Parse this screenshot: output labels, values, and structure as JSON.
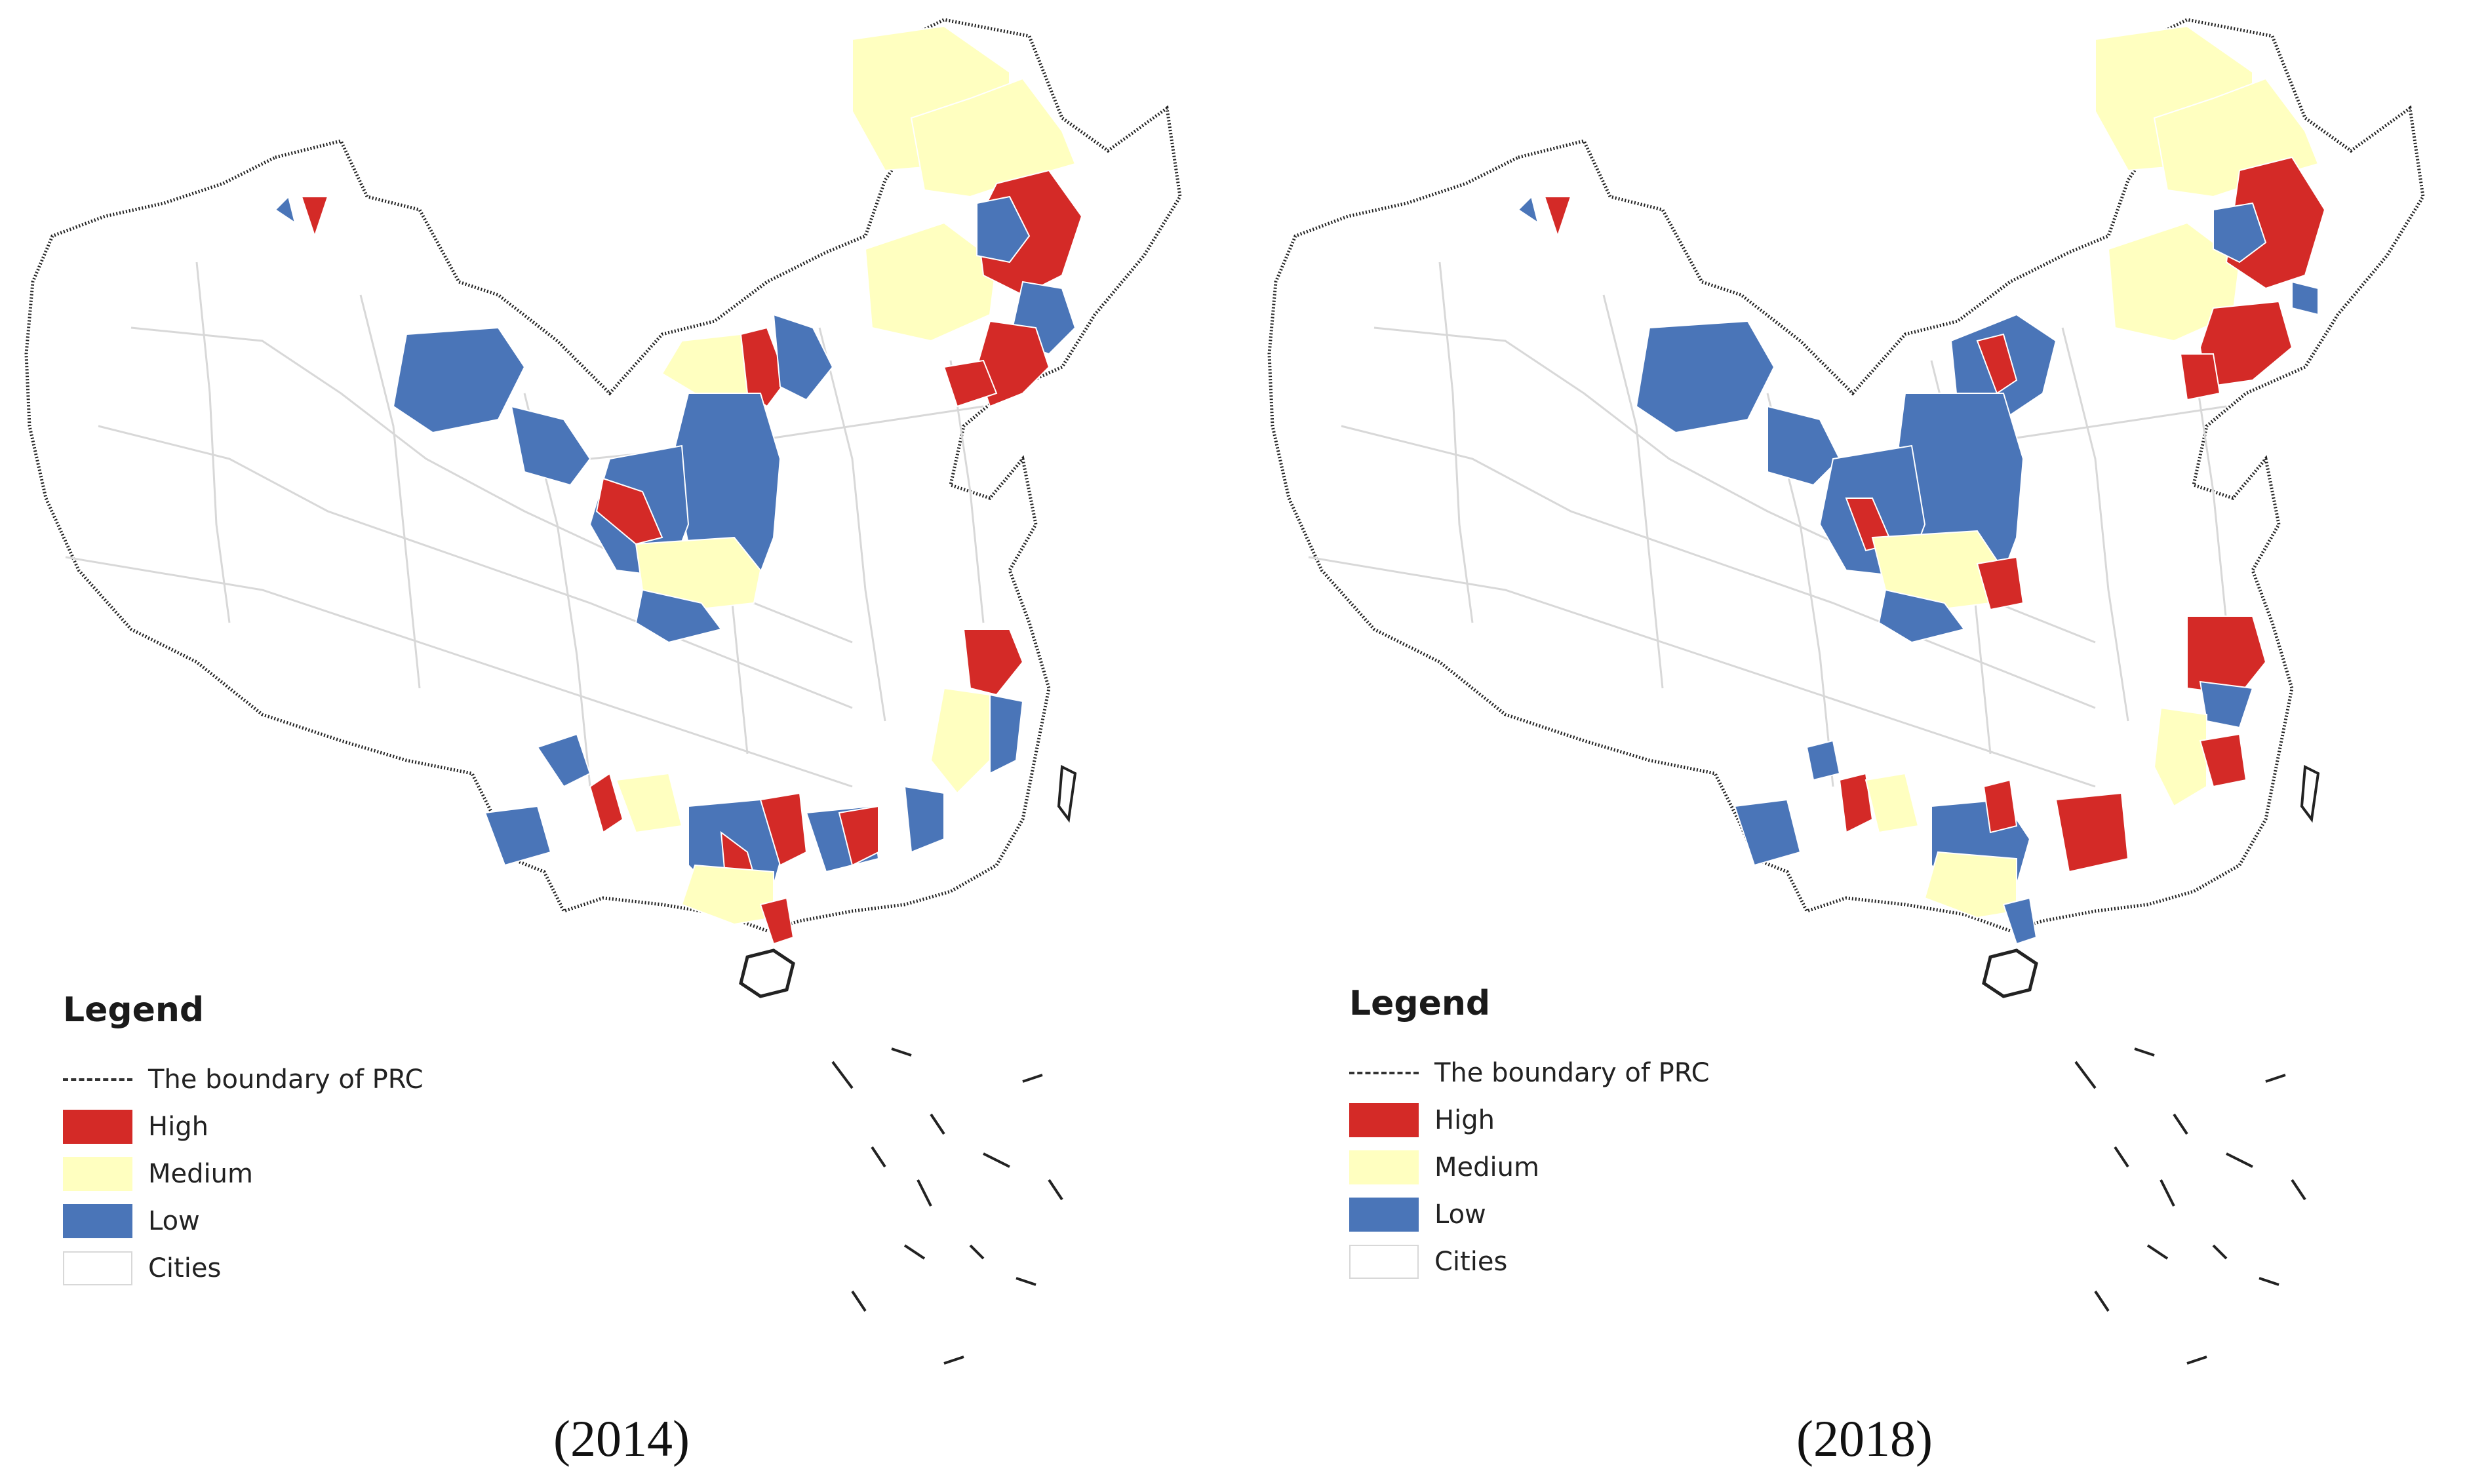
{
  "panels": [
    {
      "caption": "(2014)",
      "legend": {
        "title": "Legend",
        "items": [
          {
            "label": "The boundary of PRC",
            "type": "line"
          },
          {
            "label": "High",
            "color": "#d42a27"
          },
          {
            "label": "Medium",
            "color": "#ffffc0"
          },
          {
            "label": "Low",
            "color": "#4a75b8"
          },
          {
            "label": "Cities",
            "color": "#ffffff"
          }
        ]
      }
    },
    {
      "caption": "(2018)",
      "legend": {
        "title": "Legend",
        "items": [
          {
            "label": "The boundary of PRC",
            "type": "line"
          },
          {
            "label": "High",
            "color": "#d42a27"
          },
          {
            "label": "Medium",
            "color": "#ffffc0"
          },
          {
            "label": "Low",
            "color": "#4a75b8"
          },
          {
            "label": "Cities",
            "color": "#ffffff"
          }
        ]
      }
    }
  ],
  "colors": {
    "high": "#d42a27",
    "medium": "#ffffc0",
    "low": "#4a75b8",
    "cities": "#ffffff",
    "city_border": "#d8d8d8",
    "boundary": "#222222"
  }
}
